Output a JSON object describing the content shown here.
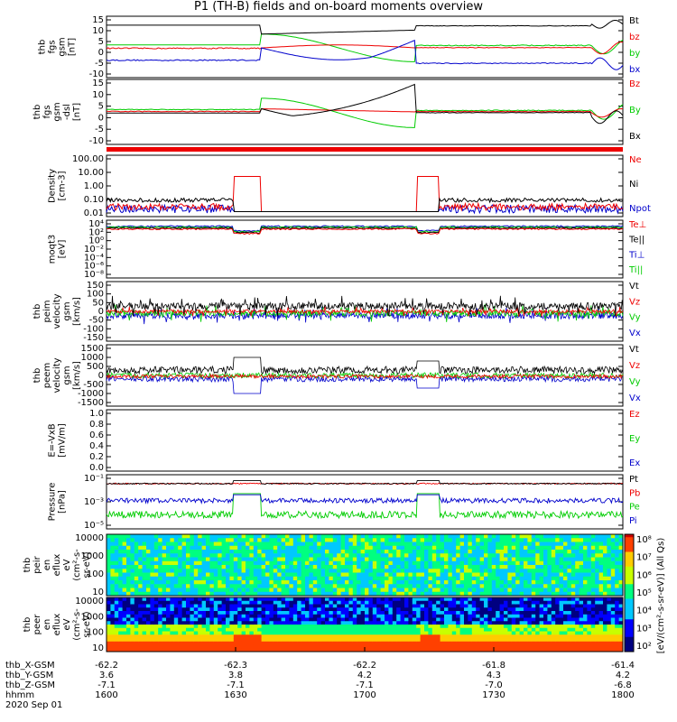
{
  "title": "P1 (TH-B) fields and on-board moments overview",
  "colors": {
    "black": "#000000",
    "red": "#ee0000",
    "green": "#00cc00",
    "blue": "#0000cc",
    "white": "#ffffff"
  },
  "chart_data": [
    {
      "type": "line",
      "panel": "fgs-gsm",
      "ylabel": [
        "thb",
        "fgs",
        "gsm",
        "[nT]"
      ],
      "yticks": [
        "15",
        "10",
        "5",
        "0",
        "-5",
        "-10"
      ],
      "ylim": [
        -15,
        16
      ],
      "legend": [
        {
          "label": "Bt",
          "color": "#000000"
        },
        {
          "label": "bz",
          "color": "#ee0000"
        },
        {
          "label": "by",
          "color": "#00cc00"
        },
        {
          "label": "bx",
          "color": "#0000cc"
        }
      ]
    },
    {
      "type": "line",
      "panel": "fgs-dsl",
      "ylabel": [
        "thb",
        "fgs",
        "gsm",
        "-dsl",
        "[nT]"
      ],
      "yticks": [
        "15",
        "10",
        "5",
        "0",
        "-5",
        "-10"
      ],
      "ylim": [
        -15,
        16
      ],
      "legend": [
        {
          "label": "Bz",
          "color": "#ee0000"
        },
        {
          "label": "By",
          "color": "#00cc00"
        },
        {
          "label": "Bx",
          "color": "#000000"
        }
      ]
    },
    {
      "type": "line",
      "panel": "density",
      "ylabel": [
        "Density",
        "[cm-3]"
      ],
      "yticks": [
        "100.00",
        "10.00",
        "1.00",
        "0.10",
        "0.01"
      ],
      "log": true,
      "legend": [
        {
          "label": "Ne",
          "color": "#ee0000"
        },
        {
          "label": "Ni",
          "color": "#000000"
        },
        {
          "label": "Npot",
          "color": "#0000cc"
        }
      ]
    },
    {
      "type": "line",
      "panel": "temperature",
      "ylabel": [
        "moqt3",
        "[eV]"
      ],
      "yticks": [
        "10⁴",
        "10²",
        "10⁰",
        "10⁻²",
        "10⁻⁴",
        "10⁻⁶",
        "10⁻⁸"
      ],
      "log": true,
      "legend": [
        {
          "label": "Te⊥",
          "color": "#ee0000"
        },
        {
          "label": "Te||",
          "color": "#000000"
        },
        {
          "label": "Ti⊥",
          "color": "#0000cc"
        },
        {
          "label": "Ti||",
          "color": "#00cc00"
        }
      ]
    },
    {
      "type": "line",
      "panel": "peim-velocity",
      "ylabel": [
        "thb",
        "peim",
        "velocity",
        "gsm",
        "[km/s]"
      ],
      "yticks": [
        "150",
        "100",
        "50",
        "0",
        "-50",
        "-100",
        "-150"
      ],
      "ylim": [
        -150,
        150
      ],
      "legend": [
        {
          "label": "Vt",
          "color": "#000000"
        },
        {
          "label": "Vz",
          "color": "#ee0000"
        },
        {
          "label": "Vy",
          "color": "#00cc00"
        },
        {
          "label": "Vx",
          "color": "#0000cc"
        }
      ]
    },
    {
      "type": "line",
      "panel": "peem-velocity",
      "ylabel": [
        "thb",
        "peem",
        "velocity",
        "gsm",
        "[km/s]"
      ],
      "yticks": [
        "1500",
        "1000",
        "500",
        "0",
        "-500",
        "-1000",
        "-1500"
      ],
      "ylim": [
        -1500,
        1500
      ],
      "legend": [
        {
          "label": "Vt",
          "color": "#000000"
        },
        {
          "label": "Vz",
          "color": "#ee0000"
        },
        {
          "label": "Vy",
          "color": "#00cc00"
        },
        {
          "label": "Vx",
          "color": "#0000cc"
        }
      ]
    },
    {
      "type": "line",
      "panel": "efield",
      "ylabel": [
        "E=-VxB",
        "[mV/m]"
      ],
      "yticks": [
        "1.0",
        "0.8",
        "0.6",
        "0.4",
        "0.2",
        "0.0"
      ],
      "ylim": [
        0,
        1
      ],
      "legend": [
        {
          "label": "Ez",
          "color": "#ee0000"
        },
        {
          "label": "Ey",
          "color": "#00cc00"
        },
        {
          "label": "Ex",
          "color": "#0000cc"
        }
      ]
    },
    {
      "type": "line",
      "panel": "pressure",
      "ylabel": [
        "Pressure",
        "[nPa]"
      ],
      "yticks": [
        "10⁻¹",
        "10⁻³",
        "10⁻⁵"
      ],
      "log": true,
      "legend": [
        {
          "label": "Pt",
          "color": "#000000"
        },
        {
          "label": "Pb",
          "color": "#ee0000"
        },
        {
          "label": "Pe",
          "color": "#00cc00"
        },
        {
          "label": "Pi",
          "color": "#0000cc"
        }
      ]
    },
    {
      "type": "heatmap",
      "panel": "peir-spectrogram",
      "ylabel": [
        "thb",
        "peir",
        "en",
        "eflux",
        "eV",
        "(cm²-s-",
        "sr-eV)"
      ],
      "yticks": [
        "10000",
        "1000",
        "100",
        "10"
      ],
      "log": true
    },
    {
      "type": "heatmap",
      "panel": "peer-spectrogram",
      "ylabel": [
        "thb",
        "peer",
        "en",
        "eflux",
        "eV",
        "(cm²-s-",
        "sr-eV)"
      ],
      "yticks": [
        "10000",
        "1000",
        "100",
        "10"
      ],
      "log": true
    }
  ],
  "colorbar": {
    "label": "[eV/(cm²-s-sr-eV)] (All Qs)",
    "ticks": [
      "10⁸",
      "10⁷",
      "10⁶",
      "10⁵",
      "10⁴",
      "10³",
      "10²"
    ]
  },
  "xaxis": {
    "rows": [
      {
        "label": "thb_X-GSM",
        "values": [
          "-62.2",
          "-62.3",
          "-62.2",
          "-61.8",
          "-61.4"
        ]
      },
      {
        "label": "thb_Y-GSM",
        "values": [
          "3.6",
          "3.8",
          "4.2",
          "4.3",
          "4.2"
        ]
      },
      {
        "label": "thb_Z-GSM",
        "values": [
          "-7.1",
          "-7.1",
          "-7.1",
          "-7.0",
          "-6.8"
        ]
      },
      {
        "label": "hhmm",
        "values": [
          "1600",
          "1630",
          "1700",
          "1730",
          "1800"
        ]
      }
    ],
    "date": "2020 Sep 01"
  }
}
